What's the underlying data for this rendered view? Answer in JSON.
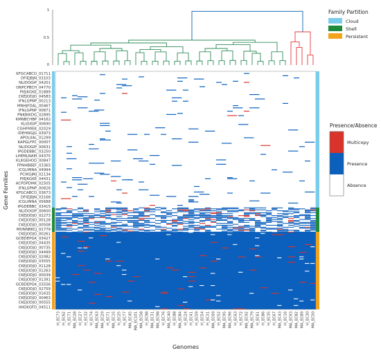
{
  "chart_data": {
    "type": "heatmap",
    "xlabel": "Genomes",
    "ylabel": "Gene Families",
    "colors": {
      "cloud": "#79ccec",
      "shell": "#1f8a3c",
      "persistent": "#f3a21b",
      "multicopy": "#d9342b",
      "presence": "#0b5fbd",
      "absence": "#ffffff",
      "dendro_shell": "#2e8b57",
      "dendro_persistent": "#e0383a",
      "dendro_root": "#1f6fb5"
    },
    "dendrogram": {
      "yticks": [
        "1",
        "0.5",
        "0"
      ],
      "ylim": [
        0,
        1
      ]
    },
    "genomes": [
      "H_EC73",
      "H_EC62",
      "H_EC71",
      "MA_EC28",
      "H_EC27",
      "H_EC32",
      "H_EC74",
      "MA_EC63",
      "MA_EC29",
      "H_EC71",
      "MA_EC15",
      "H_EC25",
      "H_EC77",
      "MA_EC45",
      "MA_EC101",
      "MA_EC58",
      "H_EC98",
      "MA_EC31",
      "MA_EC98",
      "H_EC76",
      "MA_EC40",
      "H_EC88",
      "MA_EC84",
      "H_EC24",
      "H_EC41",
      "H_EC59",
      "H_EC54",
      "H_EC31",
      "MA_EC69",
      "H_EC52",
      "MA_EC95",
      "MA_EC96",
      "H_EC63",
      "H_EC72",
      "MA_EC92",
      "MA_EC79",
      "H_EC61",
      "H_EC86",
      "H_EC35",
      "H_EC67",
      "MA_EC43",
      "H_EC16",
      "MA_EC93",
      "MA_EC82",
      "MA_EC89",
      "H_EC30",
      "MA_EC50"
    ],
    "gene_families": [
      "KFGCABCO_01711",
      "DFIEJBJN_03103",
      "NLIDOGIP_04201",
      "ONPCPBCH_04770",
      "PIEJKGKE_01889",
      "CKEJODJO_04583",
      "IFNLGPNP_00213",
      "MNHJFDAL_00467",
      "IFNLGPNP_00871",
      "PNKBIKDG_02895",
      "KMNBCHBP_04162",
      "KLIGIGIP_00690",
      "CGHFMIEK_02029",
      "IDEHNGJG_03973",
      "APOLIIAL_01299",
      "KAPGLFPC_00007",
      "NLIDOGIP_00631",
      "IPGDEBBC_03250",
      "LHEMLNAM_04375",
      "KLKGEHOD_00847",
      "FPNHBBEF_03365",
      "ICGLMINA_04994",
      "PCIKGJMJ_02134",
      "PIEJKGKE_04431",
      "ACPDPDMK_02505",
      "IFNLGPNP_00826",
      "KFGCABCO_03673",
      "DFIEJBJN_03168",
      "ICGLMINA_05688",
      "IPGDEBBC_03415",
      "NLIDOGIP_00600",
      "CKEJODJO_02273",
      "CKEJODJO_00128",
      "CKEJODJO_00508",
      "MONNBKCJ_01779",
      "CKEJODJO_00261",
      "GCBDEPGK_03427",
      "CKEJODJO_04435",
      "CKEJODJO_00735",
      "CKEJODJO_04499",
      "CKEJODJO_02082",
      "CKEJODJO_03555",
      "CKEJODJO_01128",
      "CKEJODJO_01263",
      "CKEJODJO_00039",
      "CKEJODJO_01391",
      "GCBDEPGK_03556",
      "CKEJODJO_02759",
      "CKEJODJO_01635",
      "CKEJODJO_00463",
      "CKEJODJO_00555",
      "IHIGKGFD_04511"
    ],
    "partition_bar": [
      {
        "partition": "cloud",
        "from": 0.0,
        "to": 0.572
      },
      {
        "partition": "shell",
        "from": 0.572,
        "to": 0.675
      },
      {
        "partition": "persistent",
        "from": 0.675,
        "to": 1.0
      }
    ],
    "legends": {
      "partition": {
        "title": "Family Partition",
        "entries": [
          {
            "label": "Cloud",
            "key": "cloud"
          },
          {
            "label": "Shell",
            "key": "shell"
          },
          {
            "label": "Persistent",
            "key": "persistent"
          }
        ]
      },
      "presence": {
        "title": "Presence/Absence",
        "entries": [
          {
            "label": "Multicopy",
            "key": "multicopy"
          },
          {
            "label": "Presence",
            "key": "presence"
          },
          {
            "label": "Absence",
            "key": "absence"
          }
        ]
      }
    }
  }
}
